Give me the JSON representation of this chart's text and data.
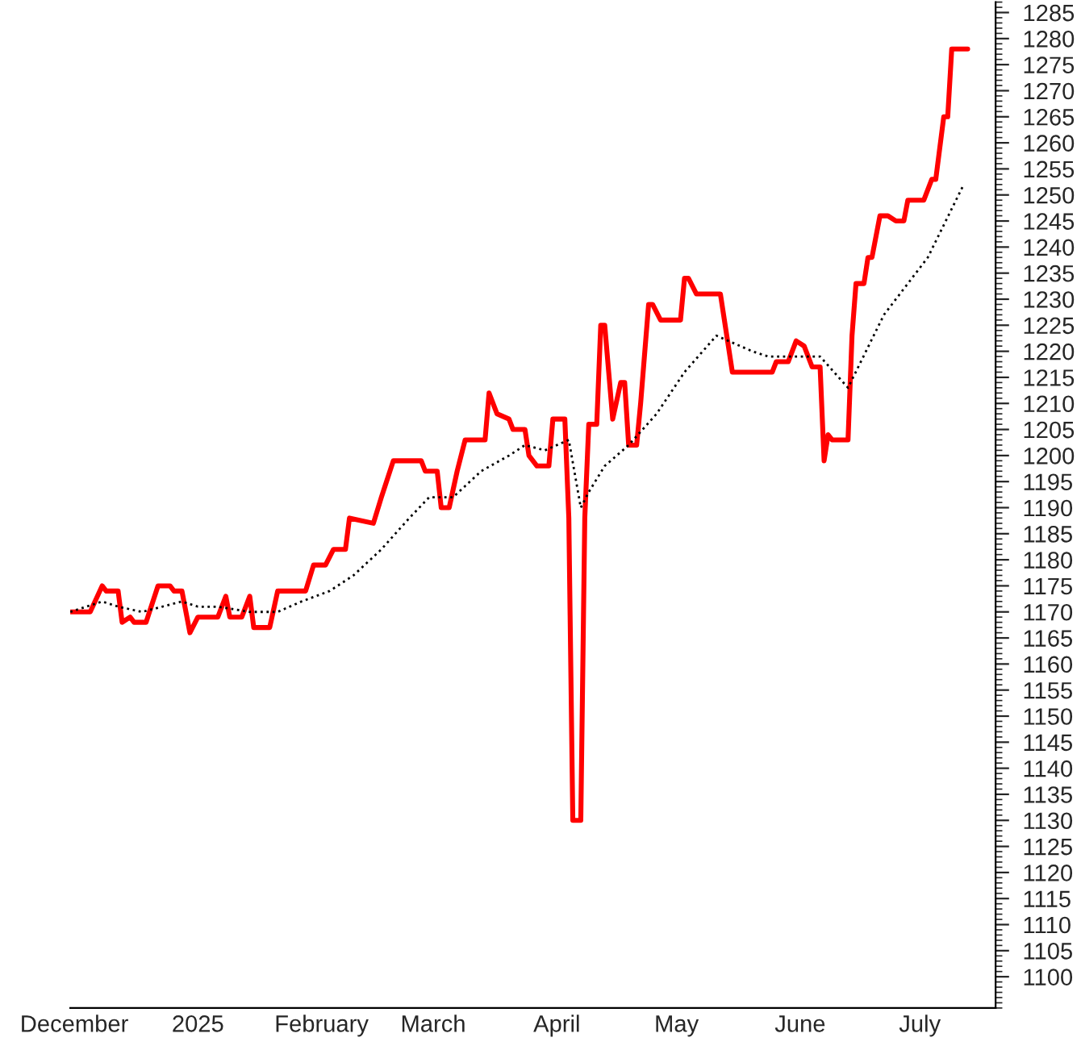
{
  "chart_data": {
    "type": "line",
    "xlim": [
      "2024-11-30",
      "2025-07-20"
    ],
    "xticks": [
      {
        "value": "2024-12-01",
        "label": "December"
      },
      {
        "value": "2025-01-01",
        "label": "2025"
      },
      {
        "value": "2025-02-01",
        "label": "February"
      },
      {
        "value": "2025-03-01",
        "label": "March"
      },
      {
        "value": "2025-04-01",
        "label": "April"
      },
      {
        "value": "2025-05-01",
        "label": "May"
      },
      {
        "value": "2025-06-01",
        "label": "June"
      },
      {
        "value": "2025-07-01",
        "label": "July"
      }
    ],
    "ylim": [
      1094,
      1287
    ],
    "yticks": [
      1100,
      1105,
      1110,
      1115,
      1120,
      1125,
      1130,
      1135,
      1140,
      1145,
      1150,
      1155,
      1160,
      1165,
      1170,
      1175,
      1180,
      1185,
      1190,
      1195,
      1200,
      1205,
      1210,
      1215,
      1220,
      1225,
      1230,
      1235,
      1240,
      1245,
      1250,
      1255,
      1260,
      1265,
      1270,
      1275,
      1280,
      1285
    ],
    "grid": false,
    "series": [
      {
        "color": "#ff0000",
        "line_style": "solid",
        "x": [
          "2024-11-30",
          "2024-12-05",
          "2024-12-08",
          "2024-12-09",
          "2024-12-12",
          "2024-12-13",
          "2024-12-15",
          "2024-12-16",
          "2024-12-19",
          "2024-12-22",
          "2024-12-25",
          "2024-12-26",
          "2024-12-28",
          "2024-12-30",
          "2025-01-01",
          "2025-01-06",
          "2025-01-08",
          "2025-01-09",
          "2025-01-12",
          "2025-01-14",
          "2025-01-15",
          "2025-01-19",
          "2025-01-21",
          "2025-01-28",
          "2025-01-30",
          "2025-02-02",
          "2025-02-04",
          "2025-02-07",
          "2025-02-08",
          "2025-02-14",
          "2025-02-16",
          "2025-02-19",
          "2025-02-23",
          "2025-02-26",
          "2025-02-27",
          "2025-03-02",
          "2025-03-03",
          "2025-03-05",
          "2025-03-07",
          "2025-03-09",
          "2025-03-14",
          "2025-03-15",
          "2025-03-17",
          "2025-03-20",
          "2025-03-21",
          "2025-03-24",
          "2025-03-25",
          "2025-03-27",
          "2025-03-30",
          "2025-03-31",
          "2025-04-03",
          "2025-04-04",
          "2025-04-05",
          "2025-04-07",
          "2025-04-08",
          "2025-04-09",
          "2025-04-11",
          "2025-04-12",
          "2025-04-13",
          "2025-04-14",
          "2025-04-15",
          "2025-04-17",
          "2025-04-18",
          "2025-04-19",
          "2025-04-21",
          "2025-04-22",
          "2025-04-24",
          "2025-04-25",
          "2025-04-27",
          "2025-05-02",
          "2025-05-03",
          "2025-05-04",
          "2025-05-06",
          "2025-05-12",
          "2025-05-15",
          "2025-05-21",
          "2025-05-22",
          "2025-05-25",
          "2025-05-26",
          "2025-05-29",
          "2025-05-31",
          "2025-06-02",
          "2025-06-04",
          "2025-06-06",
          "2025-06-07",
          "2025-06-08",
          "2025-06-09",
          "2025-06-13",
          "2025-06-14",
          "2025-06-15",
          "2025-06-17",
          "2025-06-18",
          "2025-06-19",
          "2025-06-21",
          "2025-06-23",
          "2025-06-25",
          "2025-06-27",
          "2025-06-28",
          "2025-07-02",
          "2025-07-04",
          "2025-07-05",
          "2025-07-07",
          "2025-07-08",
          "2025-07-09",
          "2025-07-13"
        ],
        "values": [
          1170,
          1170,
          1175,
          1174,
          1174,
          1168,
          1169,
          1168,
          1168,
          1175,
          1175,
          1174,
          1174,
          1166,
          1169,
          1169,
          1173,
          1169,
          1169,
          1173,
          1167,
          1167,
          1174,
          1174,
          1179,
          1179,
          1182,
          1182,
          1188,
          1187,
          1192,
          1199,
          1199,
          1199,
          1197,
          1197,
          1190,
          1190,
          1197,
          1203,
          1203,
          1212,
          1208,
          1207,
          1205,
          1205,
          1200,
          1198,
          1198,
          1207,
          1207,
          1188,
          1130,
          1130,
          1188,
          1206,
          1206,
          1225,
          1225,
          1216,
          1207,
          1214,
          1214,
          1202,
          1202,
          1210,
          1229,
          1229,
          1226,
          1226,
          1234,
          1234,
          1231,
          1231,
          1216,
          1216,
          1216,
          1216,
          1218,
          1218,
          1222,
          1221,
          1217,
          1217,
          1199,
          1204,
          1203,
          1203,
          1223,
          1233,
          1233,
          1238,
          1238,
          1246,
          1246,
          1245,
          1245,
          1249,
          1249,
          1253,
          1253,
          1265,
          1265,
          1278,
          1278
        ]
      },
      {
        "color": "#000000",
        "line_style": "dotted",
        "x": [
          "2024-11-30",
          "2024-12-04",
          "2024-12-08",
          "2024-12-12",
          "2024-12-18",
          "2024-12-23",
          "2024-12-28",
          "2025-01-01",
          "2025-01-06",
          "2025-01-14",
          "2025-01-21",
          "2025-01-27",
          "2025-02-03",
          "2025-02-09",
          "2025-02-16",
          "2025-02-23",
          "2025-02-28",
          "2025-03-06",
          "2025-03-13",
          "2025-03-20",
          "2025-03-24",
          "2025-03-29",
          "2025-04-04",
          "2025-04-07",
          "2025-04-09",
          "2025-04-13",
          "2025-04-19",
          "2025-04-26",
          "2025-05-03",
          "2025-05-11",
          "2025-05-20",
          "2025-05-24",
          "2025-06-06",
          "2025-06-13",
          "2025-06-22",
          "2025-07-03",
          "2025-07-12"
        ],
        "values": [
          1170,
          1171,
          1172,
          1171,
          1170,
          1171,
          1172,
          1171,
          1171,
          1170,
          1170,
          1172,
          1174,
          1177,
          1182,
          1188,
          1192,
          1192,
          1197,
          1200,
          1202,
          1201,
          1203,
          1190,
          1193,
          1198,
          1202,
          1208,
          1216,
          1223,
          1220,
          1219,
          1219,
          1213,
          1227,
          1238,
          1252
        ]
      }
    ]
  }
}
